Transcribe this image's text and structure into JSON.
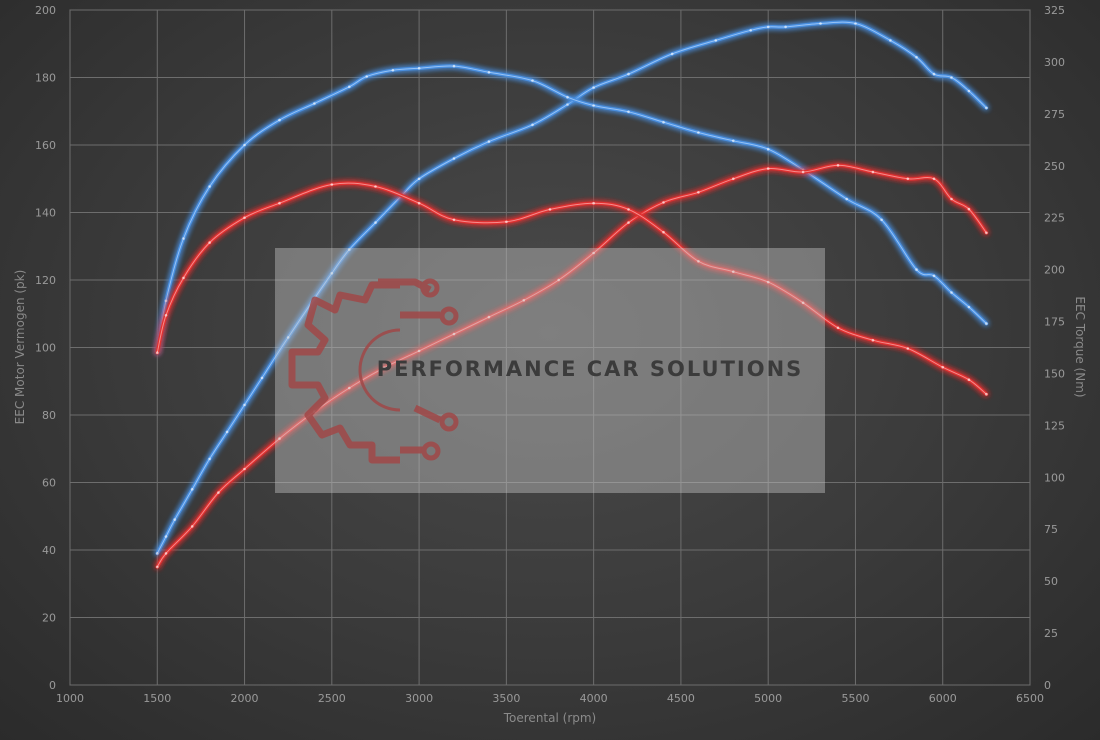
{
  "chart_data": {
    "type": "line",
    "xlabel": "Toerental (rpm)",
    "ylabel_left": "EEC Motor Vermogen (pk)",
    "ylabel_right": "EEC Torque (Nm)",
    "xlim": [
      1000,
      6500
    ],
    "ylim_left": [
      0,
      200
    ],
    "ylim_right": [
      0,
      325
    ],
    "x_ticks": [
      1000,
      1500,
      2000,
      2500,
      3000,
      3500,
      4000,
      4500,
      5000,
      5500,
      6000,
      6500
    ],
    "y_left_ticks": [
      0,
      20,
      40,
      60,
      80,
      100,
      120,
      140,
      160,
      180,
      200
    ],
    "y_right_ticks": [
      0,
      25,
      50,
      75,
      100,
      125,
      150,
      175,
      200,
      225,
      250,
      275,
      300,
      325
    ],
    "grid": true,
    "series": [
      {
        "color": "#4a8fe0",
        "axis": "left",
        "x": [
          1500,
          1550,
          1600,
          1700,
          1800,
          1900,
          2000,
          2100,
          2250,
          2500,
          2600,
          2750,
          2900,
          3000,
          3200,
          3400,
          3650,
          3850,
          4000,
          4200,
          4450,
          4700,
          4900,
          5000,
          5100,
          5300,
          5500,
          5700,
          5850,
          5950,
          6050,
          6150,
          6250
        ],
        "y": [
          39,
          44,
          49,
          58,
          67,
          75,
          83,
          91,
          103,
          122,
          129,
          137,
          145,
          150,
          156,
          161,
          166,
          172,
          177,
          181,
          187,
          191,
          194,
          195,
          195,
          196,
          196,
          191,
          186,
          181,
          180,
          176,
          171
        ]
      },
      {
        "color": "#4a8fe0",
        "axis": "right",
        "x": [
          1500,
          1550,
          1650,
          1800,
          2000,
          2200,
          2400,
          2600,
          2700,
          2850,
          3000,
          3200,
          3400,
          3650,
          3850,
          4000,
          4200,
          4400,
          4600,
          4800,
          5000,
          5200,
          5450,
          5650,
          5850,
          5950,
          6050,
          6150,
          6250
        ],
        "y": [
          160,
          185,
          215,
          240,
          260,
          272,
          280,
          288,
          293,
          296,
          297,
          298,
          295,
          291,
          283,
          279,
          276,
          271,
          266,
          262,
          258,
          248,
          234,
          224,
          200,
          197,
          189,
          182,
          174
        ]
      },
      {
        "color": "#e03030",
        "axis": "left",
        "x": [
          1500,
          1550,
          1700,
          1850,
          2000,
          2200,
          2400,
          2600,
          2800,
          3000,
          3200,
          3400,
          3600,
          3800,
          4000,
          4200,
          4400,
          4600,
          4800,
          5000,
          5200,
          5400,
          5600,
          5800,
          5950,
          6050,
          6150,
          6250
        ],
        "y": [
          35,
          39,
          47,
          57,
          64,
          73,
          81,
          88,
          94,
          99,
          104,
          109,
          114,
          120,
          128,
          137,
          143,
          146,
          150,
          153,
          152,
          154,
          152,
          150,
          150,
          144,
          141,
          134
        ]
      },
      {
        "color": "#e03030",
        "axis": "right",
        "x": [
          1500,
          1550,
          1650,
          1800,
          2000,
          2200,
          2500,
          2750,
          3000,
          3200,
          3500,
          3750,
          4000,
          4200,
          4400,
          4600,
          4800,
          5000,
          5200,
          5400,
          5600,
          5800,
          6000,
          6150,
          6250
        ],
        "y": [
          160,
          178,
          196,
          213,
          225,
          232,
          241,
          240,
          232,
          224,
          223,
          229,
          232,
          229,
          218,
          204,
          199,
          194,
          184,
          172,
          166,
          162,
          153,
          147,
          140
        ]
      }
    ]
  },
  "watermark": {
    "brand": "PERFORMANCE CAR SOLUTIONS",
    "logo_icon": "gear-circuit-icon"
  }
}
